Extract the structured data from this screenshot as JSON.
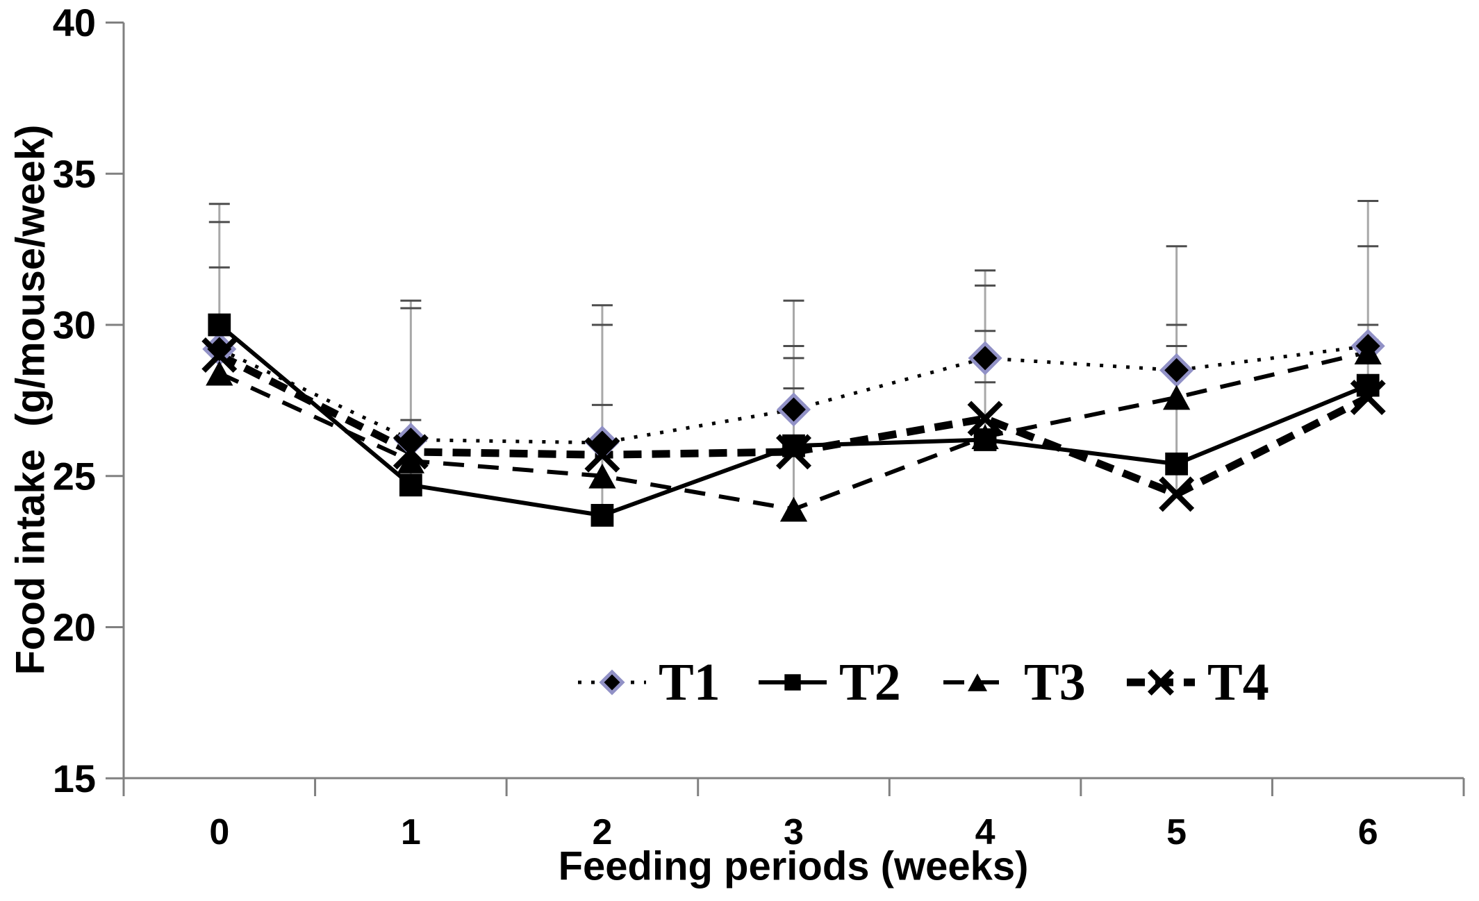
{
  "chart_data": {
    "type": "line",
    "title": "",
    "xlabel": "Feeding periods (weeks)",
    "ylabel": "Food intake  (g/mouse/week)",
    "x": [
      0,
      1,
      2,
      3,
      4,
      5,
      6
    ],
    "x_tick_labels": [
      "0",
      "1",
      "2",
      "3",
      "4",
      "5",
      "6"
    ],
    "ylim": [
      15,
      40
    ],
    "yticks": [
      15,
      20,
      25,
      30,
      35,
      40
    ],
    "grid": "off",
    "legend_position": "inside-bottom-center",
    "series": [
      {
        "name": "T1",
        "marker": "diamond",
        "line": "dotted",
        "values": [
          29.2,
          26.2,
          26.1,
          27.2,
          28.9,
          28.5,
          29.3
        ]
      },
      {
        "name": "T2",
        "marker": "square",
        "line": "solid",
        "values": [
          30.0,
          24.7,
          23.7,
          26.0,
          26.2,
          25.4,
          28.0
        ]
      },
      {
        "name": "T3",
        "marker": "triangle",
        "line": "dashed",
        "values": [
          28.4,
          25.5,
          25.0,
          23.9,
          26.3,
          27.6,
          29.1
        ]
      },
      {
        "name": "T4",
        "marker": "x",
        "line": "bold-dashed",
        "values": [
          29.0,
          25.8,
          25.7,
          25.8,
          26.9,
          24.4,
          27.6
        ]
      }
    ],
    "error_bars": [
      {
        "week": 0,
        "from": 28.4,
        "caps": [
          34.0,
          33.4,
          31.9
        ]
      },
      {
        "week": 1,
        "from": 24.7,
        "caps": [
          30.8,
          30.55,
          26.85
        ]
      },
      {
        "week": 2,
        "from": 23.7,
        "caps": [
          30.65,
          30.0,
          27.35
        ]
      },
      {
        "week": 3,
        "from": 23.9,
        "caps": [
          30.8,
          29.3,
          28.9,
          27.9
        ]
      },
      {
        "week": 4,
        "from": 26.2,
        "caps": [
          31.8,
          31.3,
          29.8,
          28.1
        ]
      },
      {
        "week": 5,
        "from": 24.4,
        "caps": [
          32.6,
          30.0,
          29.3
        ]
      },
      {
        "week": 6,
        "from": 27.6,
        "caps": [
          34.1,
          32.6,
          30.0,
          29.5
        ]
      }
    ],
    "colors": {
      "series_line": "#000000",
      "diamond_outline": "#9191c6",
      "error_bar_line": "#a8a8a8",
      "error_bar_cap": "#4d4d4d",
      "axis": "#808080",
      "text": "#000000",
      "background": "#ffffff"
    }
  }
}
